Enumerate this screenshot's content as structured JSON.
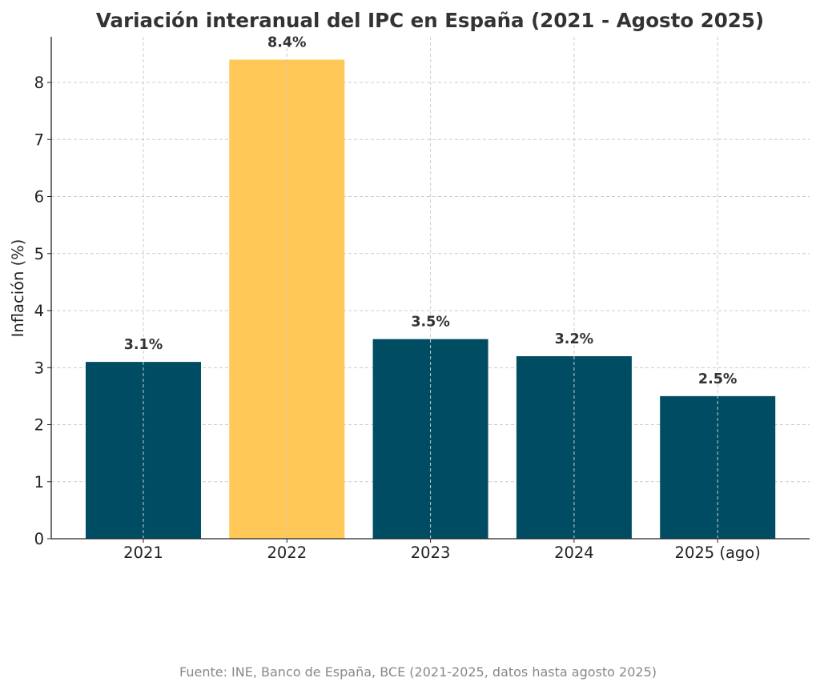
{
  "chart_data": {
    "type": "bar",
    "title": "Variación interanual del IPC en España (2021 - Agosto 2025)",
    "xlabel": "",
    "ylabel": "Inflación (%)",
    "categories": [
      "2021",
      "2022",
      "2023",
      "2024",
      "2025 (ago)"
    ],
    "values": [
      3.1,
      8.4,
      3.5,
      3.2,
      2.5
    ],
    "data_labels": [
      "3.1%",
      "8.4%",
      "3.5%",
      "3.2%",
      "2.5%"
    ],
    "bar_colors": [
      "#004c63",
      "#ffc857",
      "#004c63",
      "#004c63",
      "#004c63"
    ],
    "ylim": [
      0,
      8.8
    ],
    "yticks": [
      0,
      1,
      2,
      3,
      4,
      5,
      6,
      7,
      8
    ],
    "grid": true,
    "legend": "none",
    "footer": "Fuente: INE, Banco de España, BCE (2021-2025, datos hasta agosto 2025)"
  }
}
